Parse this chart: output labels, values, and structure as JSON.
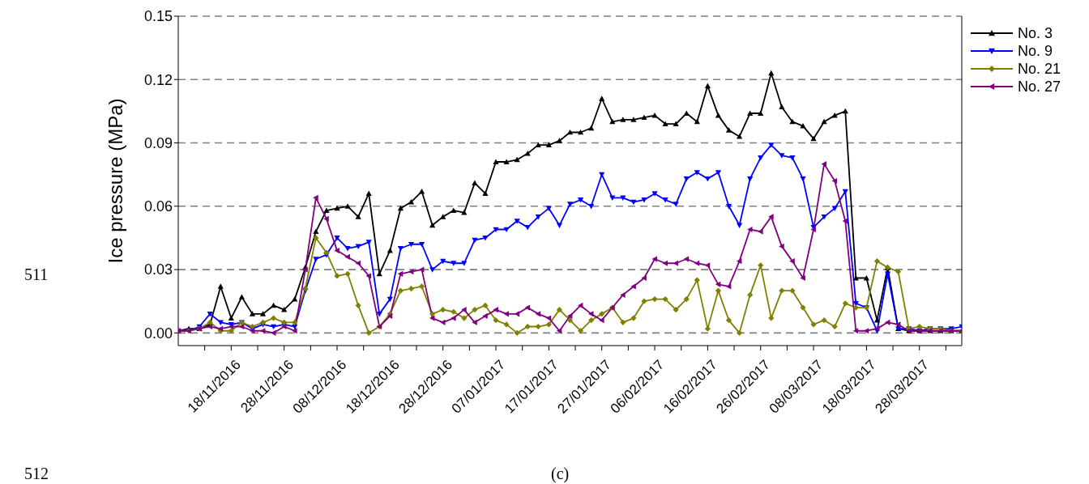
{
  "chart_data": {
    "type": "line",
    "ylabel": "Ice pressure (MPa)",
    "annotations": [
      "511",
      "512",
      "(c)"
    ],
    "x": [
      "2016-11-08",
      "2016-11-10",
      "2016-11-12",
      "2016-11-14",
      "2016-11-16",
      "2016-11-18",
      "2016-11-20",
      "2016-11-22",
      "2016-11-24",
      "2016-11-26",
      "2016-11-28",
      "2016-11-30",
      "2016-12-02",
      "2016-12-04",
      "2016-12-06",
      "2016-12-08",
      "2016-12-10",
      "2016-12-12",
      "2016-12-14",
      "2016-12-16",
      "2016-12-18",
      "2016-12-20",
      "2016-12-22",
      "2016-12-24",
      "2016-12-26",
      "2016-12-28",
      "2016-12-30",
      "2017-01-01",
      "2017-01-03",
      "2017-01-05",
      "2017-01-07",
      "2017-01-09",
      "2017-01-11",
      "2017-01-13",
      "2017-01-15",
      "2017-01-17",
      "2017-01-19",
      "2017-01-21",
      "2017-01-23",
      "2017-01-25",
      "2017-01-27",
      "2017-01-29",
      "2017-01-31",
      "2017-02-02",
      "2017-02-04",
      "2017-02-06",
      "2017-02-08",
      "2017-02-10",
      "2017-02-12",
      "2017-02-14",
      "2017-02-16",
      "2017-02-18",
      "2017-02-20",
      "2017-02-22",
      "2017-02-24",
      "2017-02-26",
      "2017-02-28",
      "2017-03-02",
      "2017-03-04",
      "2017-03-06",
      "2017-03-08",
      "2017-03-10",
      "2017-03-12",
      "2017-03-14",
      "2017-03-16",
      "2017-03-18",
      "2017-03-20",
      "2017-03-22",
      "2017-03-24",
      "2017-03-26",
      "2017-03-28",
      "2017-03-30",
      "2017-04-01",
      "2017-04-03",
      "2017-04-05"
    ],
    "series": [
      {
        "name": "No. 3",
        "color": "#000000",
        "marker": "triangle",
        "values": [
          0.001,
          0.002,
          0.002,
          0.004,
          0.022,
          0.007,
          0.017,
          0.009,
          0.009,
          0.013,
          0.011,
          0.016,
          0.031,
          0.048,
          0.058,
          0.059,
          0.06,
          0.055,
          0.066,
          0.028,
          0.039,
          0.059,
          0.062,
          0.067,
          0.051,
          0.055,
          0.058,
          0.057,
          0.071,
          0.066,
          0.081,
          0.081,
          0.082,
          0.085,
          0.089,
          0.089,
          0.091,
          0.095,
          0.095,
          0.097,
          0.111,
          0.1,
          0.101,
          0.101,
          0.102,
          0.103,
          0.099,
          0.099,
          0.104,
          0.1,
          0.117,
          0.103,
          0.096,
          0.093,
          0.104,
          0.104,
          0.123,
          0.107,
          0.1,
          0.098,
          0.092,
          0.1,
          0.103,
          0.105,
          0.026,
          0.026,
          0.006,
          0.031,
          0.002,
          0.001,
          0.001,
          0.001,
          0.001,
          0.001,
          0.001
        ]
      },
      {
        "name": "No. 9",
        "color": "#0000ff",
        "marker": "triangle-down",
        "values": [
          0.001,
          0.001,
          0.003,
          0.009,
          0.005,
          0.004,
          0.005,
          0.002,
          0.004,
          0.003,
          0.004,
          0.003,
          0.02,
          0.035,
          0.037,
          0.045,
          0.04,
          0.041,
          0.043,
          0.009,
          0.016,
          0.04,
          0.042,
          0.042,
          0.03,
          0.034,
          0.033,
          0.033,
          0.044,
          0.045,
          0.049,
          0.049,
          0.053,
          0.05,
          0.055,
          0.059,
          0.051,
          0.061,
          0.063,
          0.06,
          0.075,
          0.064,
          0.064,
          0.062,
          0.063,
          0.066,
          0.063,
          0.061,
          0.073,
          0.076,
          0.073,
          0.076,
          0.06,
          0.051,
          0.073,
          0.083,
          0.089,
          0.084,
          0.083,
          0.073,
          0.05,
          0.055,
          0.059,
          0.067,
          0.014,
          0.012,
          0.001,
          0.028,
          0.002,
          0.002,
          0.001,
          0.002,
          0.002,
          0.002,
          0.003
        ]
      },
      {
        "name": "No. 21",
        "color": "#808000",
        "marker": "diamond",
        "values": [
          0.001,
          0.001,
          0.002,
          0.005,
          0.001,
          0.001,
          0.005,
          0.003,
          0.005,
          0.007,
          0.005,
          0.005,
          0.021,
          0.045,
          0.038,
          0.027,
          0.028,
          0.013,
          0.0,
          0.003,
          0.009,
          0.02,
          0.021,
          0.022,
          0.009,
          0.011,
          0.01,
          0.007,
          0.011,
          0.013,
          0.006,
          0.004,
          0.0,
          0.003,
          0.003,
          0.004,
          0.011,
          0.006,
          0.001,
          0.006,
          0.009,
          0.012,
          0.005,
          0.007,
          0.015,
          0.016,
          0.016,
          0.011,
          0.016,
          0.025,
          0.002,
          0.02,
          0.006,
          0.0,
          0.018,
          0.032,
          0.007,
          0.02,
          0.02,
          0.012,
          0.004,
          0.006,
          0.003,
          0.014,
          0.012,
          0.012,
          0.034,
          0.031,
          0.029,
          0.002,
          0.003,
          0.002,
          0.002,
          0.001,
          0.001
        ]
      },
      {
        "name": "No. 27",
        "color": "#800080",
        "marker": "triangle-left",
        "values": [
          0.001,
          0.001,
          0.002,
          0.003,
          0.002,
          0.003,
          0.003,
          0.001,
          0.001,
          0.0,
          0.003,
          0.001,
          0.03,
          0.064,
          0.054,
          0.039,
          0.036,
          0.033,
          0.027,
          0.003,
          0.008,
          0.028,
          0.029,
          0.03,
          0.007,
          0.005,
          0.007,
          0.011,
          0.005,
          0.008,
          0.011,
          0.009,
          0.009,
          0.012,
          0.009,
          0.007,
          0.001,
          0.008,
          0.013,
          0.009,
          0.006,
          0.012,
          0.018,
          0.022,
          0.026,
          0.035,
          0.033,
          0.033,
          0.035,
          0.033,
          0.032,
          0.023,
          0.022,
          0.034,
          0.049,
          0.048,
          0.055,
          0.041,
          0.034,
          0.026,
          0.049,
          0.08,
          0.072,
          0.053,
          0.001,
          0.001,
          0.002,
          0.005,
          0.004,
          0.001,
          0.001,
          0.001,
          0.001,
          0.001,
          0.001
        ]
      }
    ],
    "xlim": [
      "2016-11-08",
      "2017-04-05"
    ],
    "xticks": [
      {
        "value": "2016-11-13",
        "label": null
      },
      {
        "value": "2016-11-18",
        "label": "18/11/2016"
      },
      {
        "value": "2016-11-23",
        "label": null
      },
      {
        "value": "2016-11-28",
        "label": "28/11/2016"
      },
      {
        "value": "2016-12-03",
        "label": null
      },
      {
        "value": "2016-12-08",
        "label": "08/12/2016"
      },
      {
        "value": "2016-12-13",
        "label": null
      },
      {
        "value": "2016-12-18",
        "label": "18/12/2016"
      },
      {
        "value": "2016-12-23",
        "label": null
      },
      {
        "value": "2016-12-28",
        "label": "28/12/2016"
      },
      {
        "value": "2017-01-02",
        "label": null
      },
      {
        "value": "2017-01-07",
        "label": "07/01/2017"
      },
      {
        "value": "2017-01-12",
        "label": null
      },
      {
        "value": "2017-01-17",
        "label": "17/01/2017"
      },
      {
        "value": "2017-01-22",
        "label": null
      },
      {
        "value": "2017-01-27",
        "label": "27/01/2017"
      },
      {
        "value": "2017-02-01",
        "label": null
      },
      {
        "value": "2017-02-06",
        "label": "06/02/2017"
      },
      {
        "value": "2017-02-11",
        "label": null
      },
      {
        "value": "2017-02-16",
        "label": "16/02/2017"
      },
      {
        "value": "2017-02-21",
        "label": null
      },
      {
        "value": "2017-02-26",
        "label": "26/02/2017"
      },
      {
        "value": "2017-03-03",
        "label": null
      },
      {
        "value": "2017-03-08",
        "label": "08/03/2017"
      },
      {
        "value": "2017-03-13",
        "label": null
      },
      {
        "value": "2017-03-18",
        "label": "18/03/2017"
      },
      {
        "value": "2017-03-23",
        "label": null
      },
      {
        "value": "2017-03-28",
        "label": "28/03/2017"
      },
      {
        "value": "2017-04-02",
        "label": null
      }
    ],
    "ylim": [
      -0.006,
      0.15
    ],
    "yticks": [
      {
        "value": 0,
        "label": "0.00"
      },
      {
        "value": 0.03,
        "label": "0.03"
      },
      {
        "value": 0.06,
        "label": "0.06"
      },
      {
        "value": 0.09,
        "label": "0.09"
      },
      {
        "value": 0.12,
        "label": "0.12"
      },
      {
        "value": 0.15,
        "label": "0.15"
      }
    ],
    "grid": "y",
    "legend": "top right",
    "line_style": "solid"
  }
}
